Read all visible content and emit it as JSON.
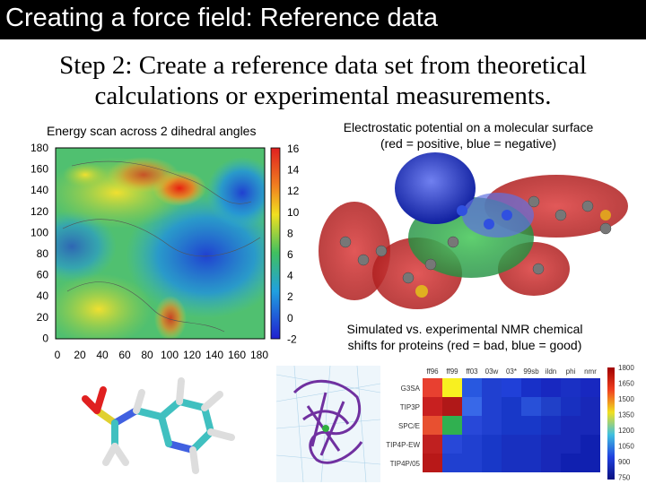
{
  "header": {
    "title": "Creating a force field: Reference data"
  },
  "subtitle": {
    "line1": "Step 2: Create a reference data set from theoretical",
    "line2": "calculations or experimental measurements."
  },
  "heatmap": {
    "title": "Energy scan across 2 dihedral angles",
    "y_ticks": [
      "180",
      "160",
      "140",
      "120",
      "100",
      "80",
      "60",
      "40",
      "20",
      "0"
    ],
    "x_ticks": [
      "0",
      "20",
      "40",
      "60",
      "80",
      "100",
      "120",
      "140",
      "160",
      "180"
    ],
    "colorbar_ticks": [
      "16",
      "14",
      "12",
      "10",
      "8",
      "6",
      "4",
      "2",
      "0",
      "-2"
    ]
  },
  "esp": {
    "caption_line1": "Electrostatic potential on a molecular surface",
    "caption_line2": "(red = positive, blue = negative)"
  },
  "nmr": {
    "caption_line1": "Simulated vs. experimental NMR chemical",
    "caption_line2": "shifts for proteins (red = bad, blue = good)",
    "columns": [
      "ff96",
      "ff99",
      "ff03",
      "03w",
      "03*",
      "99sb",
      "ildn",
      "phi",
      "nmr"
    ],
    "rows": [
      "G3SA",
      "TIP3P",
      "SPC/E",
      "TIP4P-EW",
      "TIP4P/05"
    ],
    "scale_ticks": [
      "1800",
      "1650",
      "1500",
      "1350",
      "1200",
      "1050",
      "900",
      "750"
    ],
    "cells": [
      [
        "#e84030",
        "#f8f020",
        "#2858e0",
        "#2040d0",
        "#2040d8",
        "#1830c8",
        "#1828c0",
        "#1a30c4",
        "#1828c0"
      ],
      [
        "#c82020",
        "#b01818",
        "#3868e8",
        "#2040d0",
        "#1838c8",
        "#2850d8",
        "#2040c8",
        "#1830c0",
        "#1828b8"
      ],
      [
        "#e85030",
        "#30b050",
        "#2848d8",
        "#2040d0",
        "#1838c8",
        "#1838c8",
        "#1830c0",
        "#1828b8",
        "#1828b8"
      ],
      [
        "#c02020",
        "#2848d8",
        "#2040d0",
        "#1838c8",
        "#1830c0",
        "#1830c0",
        "#1828b8",
        "#1828b8",
        "#1020b0"
      ],
      [
        "#b81818",
        "#2040d0",
        "#2040d0",
        "#1838c8",
        "#1830c0",
        "#1830c0",
        "#1828b8",
        "#1020b0",
        "#1020b0"
      ]
    ]
  }
}
